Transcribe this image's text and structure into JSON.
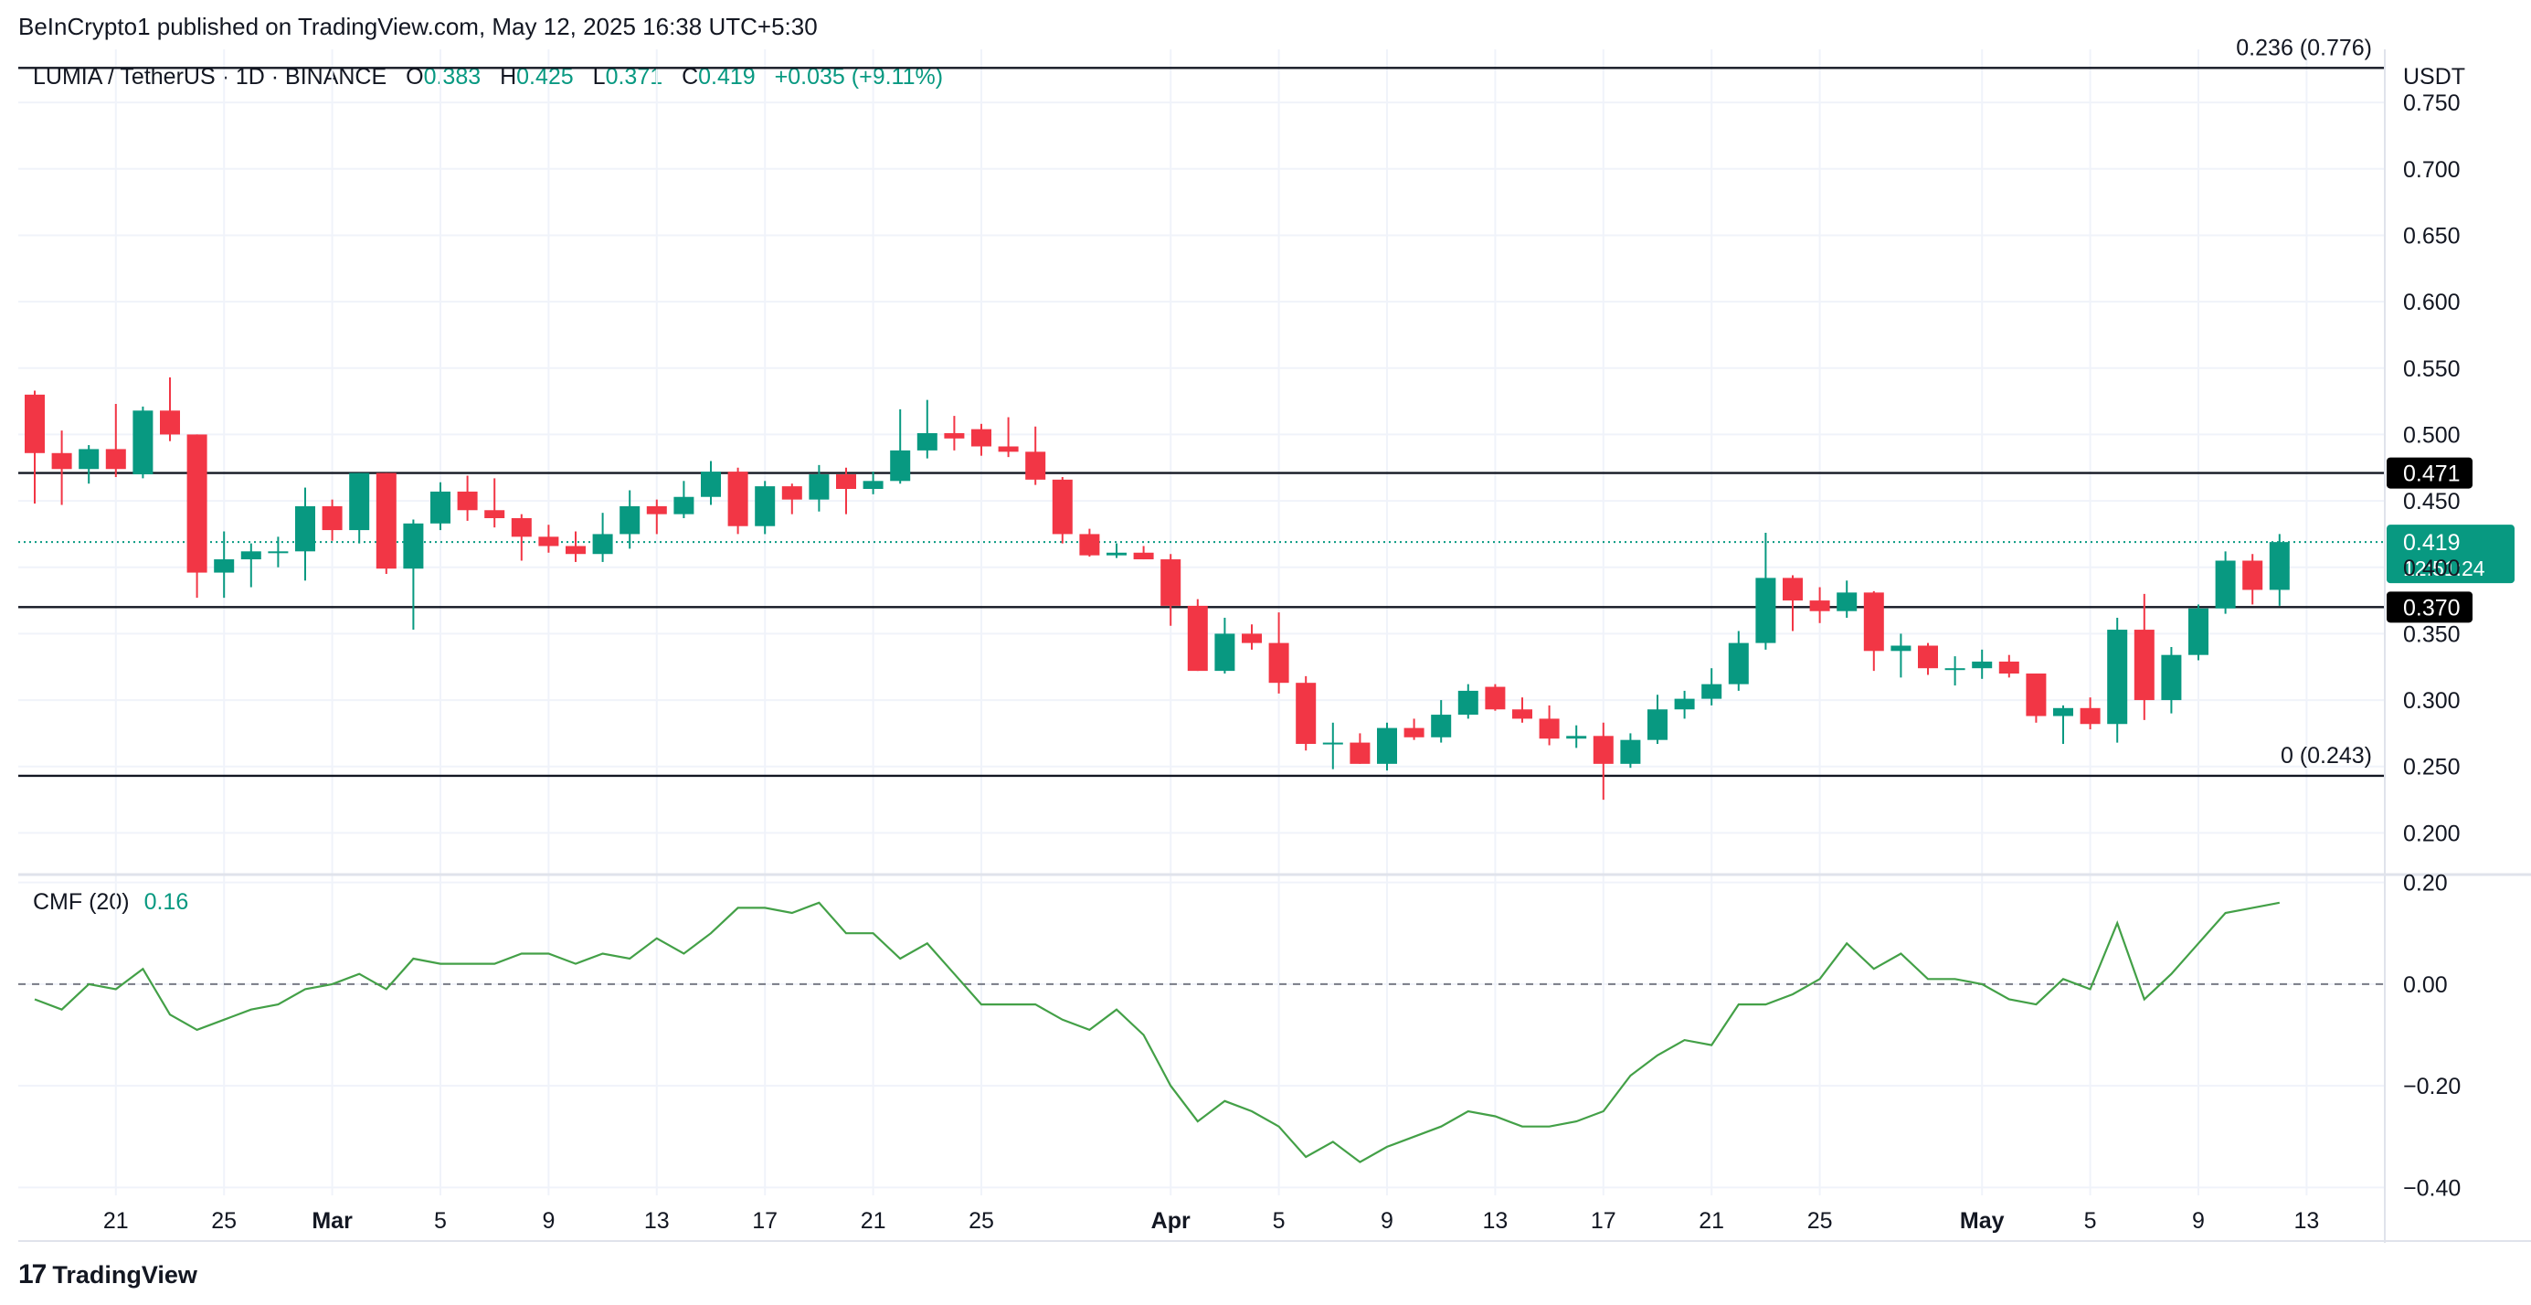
{
  "header": {
    "published": "BeInCrypto1 published on TradingView.com, May 12, 2025 16:38 UTC+5:30",
    "symbol": "LUMIA / TetherUS · 1D · BINANCE",
    "o_label": "O",
    "o_value": "0.383",
    "h_label": "H",
    "h_value": "0.425",
    "l_label": "L",
    "l_value": "0.371",
    "c_label": "C",
    "c_value": "0.419",
    "change": "+0.035 (+9.11%)",
    "currency": "USDT"
  },
  "cmf": {
    "label": "CMF (20)",
    "value": "0.16"
  },
  "footer": {
    "brand": "TradingView"
  },
  "colors": {
    "up": "#089981",
    "down": "#f23645",
    "cmf": "#43a047",
    "text": "#131722",
    "grid": "#f0f3fa"
  },
  "chart_data": [
    {
      "type": "candlestick",
      "title": "LUMIA / TetherUS · 1D · BINANCE",
      "y_unit": "USDT",
      "ylim": [
        0.17,
        0.79
      ],
      "y_ticks": [
        "0.200",
        "0.250",
        "0.300",
        "0.350",
        "0.400",
        "0.450",
        "0.500",
        "0.550",
        "0.600",
        "0.650",
        "0.700",
        "0.750"
      ],
      "x_ticks": [
        {
          "label": "21",
          "date": "2025-02-21"
        },
        {
          "label": "25",
          "date": "2025-02-25"
        },
        {
          "label": "Mar",
          "date": "2025-03-01"
        },
        {
          "label": "5",
          "date": "2025-03-05"
        },
        {
          "label": "9",
          "date": "2025-03-09"
        },
        {
          "label": "13",
          "date": "2025-03-13"
        },
        {
          "label": "17",
          "date": "2025-03-17"
        },
        {
          "label": "21",
          "date": "2025-03-21"
        },
        {
          "label": "25",
          "date": "2025-03-25"
        },
        {
          "label": "Apr",
          "date": "2025-04-01"
        },
        {
          "label": "5",
          "date": "2025-04-05"
        },
        {
          "label": "9",
          "date": "2025-04-09"
        },
        {
          "label": "13",
          "date": "2025-04-13"
        },
        {
          "label": "17",
          "date": "2025-04-17"
        },
        {
          "label": "21",
          "date": "2025-04-21"
        },
        {
          "label": "25",
          "date": "2025-04-25"
        },
        {
          "label": "May",
          "date": "2025-05-01"
        },
        {
          "label": "5",
          "date": "2025-05-05"
        },
        {
          "label": "9",
          "date": "2025-05-09"
        },
        {
          "label": "13",
          "date": "2025-05-13"
        }
      ],
      "grid": true,
      "horizontal_levels": [
        {
          "price": 0.776,
          "label": "0.236 (0.776)"
        },
        {
          "price": 0.471,
          "label": "0.471"
        },
        {
          "price": 0.37,
          "label": "0.370"
        },
        {
          "price": 0.243,
          "label": "0 (0.243)"
        }
      ],
      "last_price": {
        "price": 0.419,
        "label": "0.419",
        "countdown": "12:51:24"
      },
      "candles": [
        {
          "date": "2025-02-18",
          "o": 0.53,
          "h": 0.533,
          "l": 0.448,
          "c": 0.486
        },
        {
          "date": "2025-02-19",
          "o": 0.486,
          "h": 0.503,
          "l": 0.447,
          "c": 0.474
        },
        {
          "date": "2025-02-20",
          "o": 0.474,
          "h": 0.492,
          "l": 0.463,
          "c": 0.489
        },
        {
          "date": "2025-02-21",
          "o": 0.489,
          "h": 0.523,
          "l": 0.468,
          "c": 0.474
        },
        {
          "date": "2025-02-22",
          "o": 0.47,
          "h": 0.521,
          "l": 0.467,
          "c": 0.518
        },
        {
          "date": "2025-02-23",
          "o": 0.518,
          "h": 0.543,
          "l": 0.495,
          "c": 0.5
        },
        {
          "date": "2025-02-24",
          "o": 0.5,
          "h": 0.5,
          "l": 0.377,
          "c": 0.396
        },
        {
          "date": "2025-02-25",
          "o": 0.396,
          "h": 0.427,
          "l": 0.377,
          "c": 0.406
        },
        {
          "date": "2025-02-26",
          "o": 0.406,
          "h": 0.418,
          "l": 0.385,
          "c": 0.412
        },
        {
          "date": "2025-02-27",
          "o": 0.412,
          "h": 0.423,
          "l": 0.4,
          "c": 0.412
        },
        {
          "date": "2025-02-28",
          "o": 0.412,
          "h": 0.46,
          "l": 0.39,
          "c": 0.446
        },
        {
          "date": "2025-03-01",
          "o": 0.446,
          "h": 0.451,
          "l": 0.42,
          "c": 0.428
        },
        {
          "date": "2025-03-02",
          "o": 0.428,
          "h": 0.471,
          "l": 0.418,
          "c": 0.471
        },
        {
          "date": "2025-03-03",
          "o": 0.471,
          "h": 0.471,
          "l": 0.395,
          "c": 0.399
        },
        {
          "date": "2025-03-04",
          "o": 0.399,
          "h": 0.436,
          "l": 0.353,
          "c": 0.433
        },
        {
          "date": "2025-03-05",
          "o": 0.433,
          "h": 0.464,
          "l": 0.428,
          "c": 0.457
        },
        {
          "date": "2025-03-06",
          "o": 0.457,
          "h": 0.469,
          "l": 0.435,
          "c": 0.443
        },
        {
          "date": "2025-03-07",
          "o": 0.443,
          "h": 0.467,
          "l": 0.43,
          "c": 0.437
        },
        {
          "date": "2025-03-08",
          "o": 0.437,
          "h": 0.44,
          "l": 0.405,
          "c": 0.423
        },
        {
          "date": "2025-03-09",
          "o": 0.423,
          "h": 0.432,
          "l": 0.411,
          "c": 0.416
        },
        {
          "date": "2025-03-10",
          "o": 0.416,
          "h": 0.427,
          "l": 0.404,
          "c": 0.41
        },
        {
          "date": "2025-03-11",
          "o": 0.41,
          "h": 0.441,
          "l": 0.404,
          "c": 0.425
        },
        {
          "date": "2025-03-12",
          "o": 0.425,
          "h": 0.458,
          "l": 0.414,
          "c": 0.446
        },
        {
          "date": "2025-03-13",
          "o": 0.446,
          "h": 0.451,
          "l": 0.425,
          "c": 0.44
        },
        {
          "date": "2025-03-14",
          "o": 0.44,
          "h": 0.465,
          "l": 0.437,
          "c": 0.453
        },
        {
          "date": "2025-03-15",
          "o": 0.453,
          "h": 0.48,
          "l": 0.447,
          "c": 0.472
        },
        {
          "date": "2025-03-16",
          "o": 0.472,
          "h": 0.475,
          "l": 0.425,
          "c": 0.431
        },
        {
          "date": "2025-03-17",
          "o": 0.431,
          "h": 0.465,
          "l": 0.425,
          "c": 0.461
        },
        {
          "date": "2025-03-18",
          "o": 0.461,
          "h": 0.463,
          "l": 0.44,
          "c": 0.451
        },
        {
          "date": "2025-03-19",
          "o": 0.451,
          "h": 0.477,
          "l": 0.442,
          "c": 0.47
        },
        {
          "date": "2025-03-20",
          "o": 0.47,
          "h": 0.475,
          "l": 0.44,
          "c": 0.459
        },
        {
          "date": "2025-03-21",
          "o": 0.459,
          "h": 0.472,
          "l": 0.455,
          "c": 0.465
        },
        {
          "date": "2025-03-22",
          "o": 0.465,
          "h": 0.519,
          "l": 0.463,
          "c": 0.488
        },
        {
          "date": "2025-03-23",
          "o": 0.488,
          "h": 0.526,
          "l": 0.482,
          "c": 0.501
        },
        {
          "date": "2025-03-24",
          "o": 0.501,
          "h": 0.514,
          "l": 0.488,
          "c": 0.497
        },
        {
          "date": "2025-03-25",
          "o": 0.504,
          "h": 0.508,
          "l": 0.484,
          "c": 0.491
        },
        {
          "date": "2025-03-26",
          "o": 0.491,
          "h": 0.513,
          "l": 0.483,
          "c": 0.487
        },
        {
          "date": "2025-03-27",
          "o": 0.487,
          "h": 0.506,
          "l": 0.462,
          "c": 0.466
        },
        {
          "date": "2025-03-28",
          "o": 0.466,
          "h": 0.468,
          "l": 0.418,
          "c": 0.425
        },
        {
          "date": "2025-03-29",
          "o": 0.425,
          "h": 0.429,
          "l": 0.408,
          "c": 0.409
        },
        {
          "date": "2025-03-30",
          "o": 0.409,
          "h": 0.418,
          "l": 0.407,
          "c": 0.411
        },
        {
          "date": "2025-03-31",
          "o": 0.411,
          "h": 0.416,
          "l": 0.406,
          "c": 0.406
        },
        {
          "date": "2025-04-01",
          "o": 0.406,
          "h": 0.41,
          "l": 0.356,
          "c": 0.371
        },
        {
          "date": "2025-04-02",
          "o": 0.371,
          "h": 0.376,
          "l": 0.322,
          "c": 0.322
        },
        {
          "date": "2025-04-03",
          "o": 0.322,
          "h": 0.362,
          "l": 0.32,
          "c": 0.35
        },
        {
          "date": "2025-04-04",
          "o": 0.35,
          "h": 0.357,
          "l": 0.338,
          "c": 0.343
        },
        {
          "date": "2025-04-05",
          "o": 0.343,
          "h": 0.366,
          "l": 0.305,
          "c": 0.313
        },
        {
          "date": "2025-04-06",
          "o": 0.313,
          "h": 0.318,
          "l": 0.262,
          "c": 0.267
        },
        {
          "date": "2025-04-07",
          "o": 0.267,
          "h": 0.283,
          "l": 0.248,
          "c": 0.268
        },
        {
          "date": "2025-04-08",
          "o": 0.268,
          "h": 0.275,
          "l": 0.252,
          "c": 0.252
        },
        {
          "date": "2025-04-09",
          "o": 0.252,
          "h": 0.283,
          "l": 0.247,
          "c": 0.279
        },
        {
          "date": "2025-04-10",
          "o": 0.279,
          "h": 0.286,
          "l": 0.27,
          "c": 0.272
        },
        {
          "date": "2025-04-11",
          "o": 0.272,
          "h": 0.3,
          "l": 0.268,
          "c": 0.289
        },
        {
          "date": "2025-04-12",
          "o": 0.289,
          "h": 0.312,
          "l": 0.286,
          "c": 0.307
        },
        {
          "date": "2025-04-13",
          "o": 0.31,
          "h": 0.312,
          "l": 0.292,
          "c": 0.293
        },
        {
          "date": "2025-04-14",
          "o": 0.293,
          "h": 0.302,
          "l": 0.283,
          "c": 0.286
        },
        {
          "date": "2025-04-15",
          "o": 0.286,
          "h": 0.296,
          "l": 0.266,
          "c": 0.271
        },
        {
          "date": "2025-04-16",
          "o": 0.271,
          "h": 0.281,
          "l": 0.264,
          "c": 0.273
        },
        {
          "date": "2025-04-17",
          "o": 0.273,
          "h": 0.283,
          "l": 0.225,
          "c": 0.252
        },
        {
          "date": "2025-04-18",
          "o": 0.252,
          "h": 0.275,
          "l": 0.249,
          "c": 0.27
        },
        {
          "date": "2025-04-19",
          "o": 0.27,
          "h": 0.304,
          "l": 0.267,
          "c": 0.293
        },
        {
          "date": "2025-04-20",
          "o": 0.293,
          "h": 0.307,
          "l": 0.286,
          "c": 0.301
        },
        {
          "date": "2025-04-21",
          "o": 0.301,
          "h": 0.324,
          "l": 0.296,
          "c": 0.312
        },
        {
          "date": "2025-04-22",
          "o": 0.312,
          "h": 0.352,
          "l": 0.307,
          "c": 0.343
        },
        {
          "date": "2025-04-23",
          "o": 0.343,
          "h": 0.426,
          "l": 0.338,
          "c": 0.392
        },
        {
          "date": "2025-04-24",
          "o": 0.392,
          "h": 0.394,
          "l": 0.352,
          "c": 0.375
        },
        {
          "date": "2025-04-25",
          "o": 0.375,
          "h": 0.385,
          "l": 0.358,
          "c": 0.367
        },
        {
          "date": "2025-04-26",
          "o": 0.367,
          "h": 0.39,
          "l": 0.362,
          "c": 0.381
        },
        {
          "date": "2025-04-27",
          "o": 0.381,
          "h": 0.382,
          "l": 0.322,
          "c": 0.337
        },
        {
          "date": "2025-04-28",
          "o": 0.337,
          "h": 0.35,
          "l": 0.317,
          "c": 0.341
        },
        {
          "date": "2025-04-29",
          "o": 0.341,
          "h": 0.343,
          "l": 0.319,
          "c": 0.324
        },
        {
          "date": "2025-04-30",
          "o": 0.324,
          "h": 0.333,
          "l": 0.311,
          "c": 0.324
        },
        {
          "date": "2025-05-01",
          "o": 0.324,
          "h": 0.338,
          "l": 0.316,
          "c": 0.329
        },
        {
          "date": "2025-05-02",
          "o": 0.329,
          "h": 0.334,
          "l": 0.317,
          "c": 0.32
        },
        {
          "date": "2025-05-03",
          "o": 0.32,
          "h": 0.32,
          "l": 0.283,
          "c": 0.288
        },
        {
          "date": "2025-05-04",
          "o": 0.288,
          "h": 0.296,
          "l": 0.267,
          "c": 0.294
        },
        {
          "date": "2025-05-05",
          "o": 0.294,
          "h": 0.302,
          "l": 0.278,
          "c": 0.282
        },
        {
          "date": "2025-05-06",
          "o": 0.282,
          "h": 0.362,
          "l": 0.268,
          "c": 0.353
        },
        {
          "date": "2025-05-07",
          "o": 0.353,
          "h": 0.38,
          "l": 0.285,
          "c": 0.3
        },
        {
          "date": "2025-05-08",
          "o": 0.3,
          "h": 0.34,
          "l": 0.29,
          "c": 0.334
        },
        {
          "date": "2025-05-09",
          "o": 0.334,
          "h": 0.372,
          "l": 0.33,
          "c": 0.369
        },
        {
          "date": "2025-05-10",
          "o": 0.369,
          "h": 0.412,
          "l": 0.365,
          "c": 0.405
        },
        {
          "date": "2025-05-11",
          "o": 0.405,
          "h": 0.41,
          "l": 0.372,
          "c": 0.383
        },
        {
          "date": "2025-05-12",
          "o": 0.383,
          "h": 0.425,
          "l": 0.371,
          "c": 0.419
        }
      ]
    },
    {
      "type": "line",
      "title": "CMF (20)",
      "ylim": [
        -0.41,
        0.21
      ],
      "y_ticks": [
        "0.20",
        "0.00",
        "−0.20",
        "−0.40"
      ],
      "zero_line": {
        "value": 0,
        "style": "dashed"
      },
      "series": [
        {
          "name": "CMF (20)",
          "values": [
            -0.03,
            -0.05,
            0.0,
            -0.01,
            0.03,
            -0.06,
            -0.09,
            -0.07,
            -0.05,
            -0.04,
            -0.01,
            0.0,
            0.02,
            -0.01,
            0.05,
            0.04,
            0.04,
            0.04,
            0.06,
            0.06,
            0.04,
            0.06,
            0.05,
            0.09,
            0.06,
            0.1,
            0.15,
            0.15,
            0.14,
            0.16,
            0.1,
            0.1,
            0.05,
            0.08,
            0.02,
            -0.04,
            -0.04,
            -0.04,
            -0.07,
            -0.09,
            -0.05,
            -0.1,
            -0.2,
            -0.27,
            -0.23,
            -0.25,
            -0.28,
            -0.34,
            -0.31,
            -0.35,
            -0.32,
            -0.3,
            -0.28,
            -0.25,
            -0.26,
            -0.28,
            -0.28,
            -0.27,
            -0.25,
            -0.18,
            -0.14,
            -0.11,
            -0.12,
            -0.04,
            -0.04,
            -0.02,
            0.01,
            0.08,
            0.03,
            0.06,
            0.01,
            0.01,
            0.0,
            -0.03,
            -0.04,
            0.01,
            -0.01,
            0.12,
            -0.03,
            0.02,
            0.08,
            0.14,
            0.15,
            0.16
          ]
        }
      ]
    }
  ]
}
